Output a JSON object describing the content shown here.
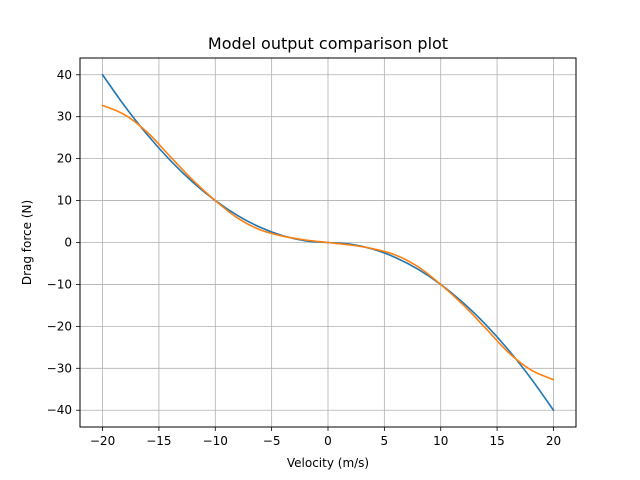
{
  "chart_data": {
    "type": "line",
    "title": "Model output comparison plot",
    "xlabel": "Velocity (m/s)",
    "ylabel": "Drag force (N)",
    "xlim": [
      -22,
      22
    ],
    "ylim": [
      -44,
      44
    ],
    "xticks": [
      -20,
      -15,
      -10,
      -5,
      0,
      5,
      10,
      15,
      20
    ],
    "yticks": [
      -40,
      -30,
      -20,
      -10,
      0,
      10,
      20,
      30,
      40
    ],
    "xtick_labels": [
      "−20",
      "−15",
      "−10",
      "−5",
      "0",
      "5",
      "10",
      "15",
      "20"
    ],
    "ytick_labels": [
      "−40",
      "−30",
      "−20",
      "−10",
      "0",
      "10",
      "20",
      "30",
      "40"
    ],
    "grid": true,
    "series": [
      {
        "color": "#1f77b4",
        "x": [
          -20,
          -18,
          -16,
          -14,
          -12,
          -10,
          -8,
          -6,
          -4,
          -2,
          0,
          2,
          4,
          6,
          8,
          10,
          12,
          14,
          16,
          18,
          20
        ],
        "y": [
          40,
          32.4,
          25.6,
          19.6,
          14.4,
          10,
          6.4,
          3.6,
          1.6,
          0.4,
          0,
          -0.4,
          -1.6,
          -3.6,
          -6.4,
          -10,
          -14.4,
          -19.6,
          -25.6,
          -32.4,
          -40
        ]
      },
      {
        "color": "#ff7f0e",
        "x": [
          -20,
          -18,
          -16,
          -14,
          -12,
          -10,
          -8,
          -6,
          -4,
          -2,
          0,
          2,
          4,
          6,
          8,
          10,
          12,
          14,
          16,
          18,
          20
        ],
        "y": [
          32.7,
          30.4,
          26.2,
          20.5,
          14.9,
          10,
          5.8,
          3.0,
          1.5,
          0.6,
          0,
          -0.6,
          -1.5,
          -3.0,
          -5.8,
          -10,
          -14.9,
          -20.5,
          -26.2,
          -30.4,
          -32.7
        ]
      }
    ]
  }
}
